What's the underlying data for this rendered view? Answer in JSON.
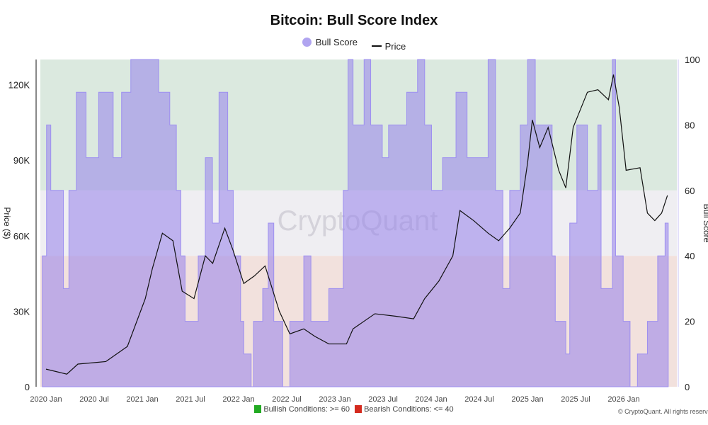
{
  "chart_data": {
    "type": "line",
    "title": "Bitcoin: Bull Score Index",
    "ylabel": "Price ($)",
    "y2label": "Bull Score",
    "ylim": [
      0,
      130000
    ],
    "y2lim": [
      0,
      100
    ],
    "yticks": [
      "0",
      "30K",
      "60K",
      "90K",
      "120K"
    ],
    "y2ticks": [
      "0",
      "20",
      "40",
      "60",
      "80",
      "100"
    ],
    "xticks": [
      "2020 Jan",
      "2020 Jul",
      "2021 Jan",
      "2021 Jul",
      "2022 Jan",
      "2022 Jul",
      "2023 Jan",
      "2023 Jul",
      "2024 Jan",
      "2024 Jul",
      "2025 Jan",
      "2025 Jul",
      "2026 Jan"
    ],
    "legend_position": "top",
    "zones": [
      {
        "label": "Bullish Conditions: >= 60",
        "from": 60,
        "to": 100,
        "color": "#dbe9df",
        "marker_color": "#22aa22"
      },
      {
        "label": "Bearish Conditions: <= 40",
        "from": 0,
        "to": 40,
        "color": "#f2e1dd",
        "marker_color": "#d42a1e"
      }
    ],
    "series": [
      {
        "name": "Bull Score",
        "axis": "right",
        "style": "step-area",
        "color": "#a99cf0",
        "points": [
          [
            "2019-12-18",
            40
          ],
          [
            "2020-01-03",
            80
          ],
          [
            "2020-01-19",
            60
          ],
          [
            "2020-03-07",
            30
          ],
          [
            "2020-03-28",
            60
          ],
          [
            "2020-04-25",
            90
          ],
          [
            "2020-06-01",
            70
          ],
          [
            "2020-07-19",
            90
          ],
          [
            "2020-09-12",
            70
          ],
          [
            "2020-10-14",
            90
          ],
          [
            "2020-11-18",
            100
          ],
          [
            "2021-03-04",
            90
          ],
          [
            "2021-04-15",
            80
          ],
          [
            "2021-05-10",
            60
          ],
          [
            "2021-05-27",
            40
          ],
          [
            "2021-06-12",
            20
          ],
          [
            "2021-08-01",
            40
          ],
          [
            "2021-08-28",
            70
          ],
          [
            "2021-09-24",
            50
          ],
          [
            "2021-10-19",
            90
          ],
          [
            "2021-11-21",
            60
          ],
          [
            "2021-12-12",
            40
          ],
          [
            "2022-01-09",
            20
          ],
          [
            "2022-01-21",
            10
          ],
          [
            "2022-02-18",
            0
          ],
          [
            "2022-02-27",
            20
          ],
          [
            "2022-04-03",
            30
          ],
          [
            "2022-04-24",
            50
          ],
          [
            "2022-05-15",
            20
          ],
          [
            "2022-06-18",
            0
          ],
          [
            "2022-07-15",
            20
          ],
          [
            "2022-09-06",
            40
          ],
          [
            "2022-10-03",
            20
          ],
          [
            "2022-12-10",
            30
          ],
          [
            "2023-02-03",
            60
          ],
          [
            "2023-02-21",
            100
          ],
          [
            "2023-03-12",
            80
          ],
          [
            "2023-04-23",
            100
          ],
          [
            "2023-05-18",
            80
          ],
          [
            "2023-07-01",
            70
          ],
          [
            "2023-07-25",
            80
          ],
          [
            "2023-10-02",
            90
          ],
          [
            "2023-11-12",
            100
          ],
          [
            "2023-12-09",
            80
          ],
          [
            "2024-01-04",
            60
          ],
          [
            "2024-02-15",
            70
          ],
          [
            "2024-04-06",
            90
          ],
          [
            "2024-05-18",
            70
          ],
          [
            "2024-08-06",
            100
          ],
          [
            "2024-09-03",
            60
          ],
          [
            "2024-10-01",
            30
          ],
          [
            "2024-10-27",
            60
          ],
          [
            "2024-12-06",
            80
          ],
          [
            "2025-01-03",
            100
          ],
          [
            "2025-02-01",
            80
          ],
          [
            "2025-04-06",
            40
          ],
          [
            "2025-04-18",
            20
          ],
          [
            "2025-05-28",
            10
          ],
          [
            "2025-06-12",
            50
          ],
          [
            "2025-07-09",
            80
          ],
          [
            "2025-08-18",
            60
          ],
          [
            "2025-09-27",
            80
          ],
          [
            "2025-10-09",
            30
          ],
          [
            "2025-11-21",
            100
          ],
          [
            "2025-12-03",
            40
          ],
          [
            "2026-01-01",
            20
          ],
          [
            "2026-01-27",
            0
          ],
          [
            "2026-02-24",
            10
          ],
          [
            "2026-04-03",
            20
          ],
          [
            "2026-05-12",
            40
          ],
          [
            "2026-06-09",
            50
          ],
          [
            "2026-06-21",
            50
          ]
        ]
      },
      {
        "name": "Price",
        "axis": "left",
        "style": "line",
        "color": "#111111",
        "points": [
          [
            "2020-01-01",
            7000
          ],
          [
            "2020-03-20",
            5000
          ],
          [
            "2020-05-01",
            9000
          ],
          [
            "2020-08-15",
            10000
          ],
          [
            "2020-11-05",
            16000
          ],
          [
            "2021-01-12",
            35000
          ],
          [
            "2021-02-08",
            47000
          ],
          [
            "2021-03-18",
            61000
          ],
          [
            "2021-04-27",
            58000
          ],
          [
            "2021-06-01",
            38000
          ],
          [
            "2021-07-16",
            35000
          ],
          [
            "2021-08-28",
            52000
          ],
          [
            "2021-09-25",
            49000
          ],
          [
            "2021-11-10",
            63000
          ],
          [
            "2021-12-12",
            54000
          ],
          [
            "2022-01-21",
            41000
          ],
          [
            "2022-03-02",
            44000
          ],
          [
            "2022-04-12",
            48000
          ],
          [
            "2022-06-05",
            30000
          ],
          [
            "2022-07-15",
            21000
          ],
          [
            "2022-09-06",
            23000
          ],
          [
            "2022-10-18",
            20000
          ],
          [
            "2022-12-10",
            17000
          ],
          [
            "2023-02-15",
            17000
          ],
          [
            "2023-03-12",
            23000
          ],
          [
            "2023-06-03",
            29000
          ],
          [
            "2023-08-22",
            28000
          ],
          [
            "2023-10-28",
            27000
          ],
          [
            "2023-12-09",
            35000
          ],
          [
            "2024-02-01",
            42000
          ],
          [
            "2024-03-25",
            52000
          ],
          [
            "2024-04-21",
            70000
          ],
          [
            "2024-06-12",
            66000
          ],
          [
            "2024-08-06",
            61000
          ],
          [
            "2024-09-15",
            58000
          ],
          [
            "2024-10-27",
            63000
          ],
          [
            "2024-12-06",
            69000
          ],
          [
            "2025-01-03",
            89000
          ],
          [
            "2025-01-21",
            106000
          ],
          [
            "2025-02-18",
            95000
          ],
          [
            "2025-03-22",
            103000
          ],
          [
            "2025-05-01",
            86000
          ],
          [
            "2025-05-28",
            79000
          ],
          [
            "2025-06-25",
            103000
          ],
          [
            "2025-08-18",
            117000
          ],
          [
            "2025-09-27",
            118000
          ],
          [
            "2025-11-06",
            114000
          ],
          [
            "2025-11-25",
            124000
          ],
          [
            "2025-12-17",
            111000
          ],
          [
            "2026-01-12",
            86000
          ],
          [
            "2026-03-06",
            87000
          ],
          [
            "2026-04-03",
            69000
          ],
          [
            "2026-05-01",
            66000
          ],
          [
            "2026-05-27",
            69000
          ],
          [
            "2026-06-18",
            76000
          ]
        ]
      }
    ]
  },
  "watermark": "CryptoQuant",
  "copyright": "© CryptoQuant. All rights reserved"
}
